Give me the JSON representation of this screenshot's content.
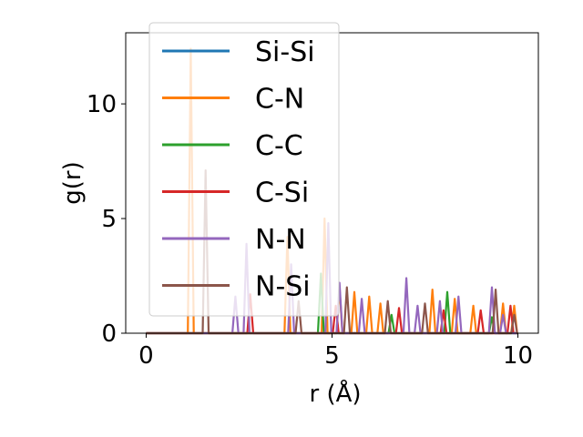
{
  "chart_data": {
    "type": "line",
    "title": "",
    "xlabel": "r (Å)",
    "ylabel": "g(r)",
    "xlim": [
      -0.55,
      10.55
    ],
    "ylim": [
      0,
      13.1
    ],
    "xticks": [
      0,
      5,
      10
    ],
    "yticks": [
      0,
      5,
      10
    ],
    "grid": false,
    "legend_position": "upper-left",
    "series": [
      {
        "name": "Si-Si",
        "color": "#1f77b4",
        "peaks": []
      },
      {
        "name": "C-N",
        "color": "#ff7f0e",
        "peaks": [
          [
            1.2,
            12.4
          ],
          [
            3.8,
            4.2
          ],
          [
            4.8,
            5.0
          ],
          [
            5.2,
            2.0
          ],
          [
            5.6,
            1.8
          ],
          [
            6.0,
            1.6
          ],
          [
            6.3,
            1.3
          ],
          [
            7.7,
            1.9
          ],
          [
            8.3,
            1.5
          ],
          [
            8.8,
            1.2
          ],
          [
            9.6,
            1.3
          ],
          [
            9.9,
            1.2
          ]
        ]
      },
      {
        "name": "C-C",
        "color": "#2ca02c",
        "peaks": [
          [
            4.7,
            2.6
          ],
          [
            6.6,
            0.8
          ],
          [
            8.1,
            1.8
          ],
          [
            9.3,
            0.7
          ]
        ]
      },
      {
        "name": "C-Si",
        "color": "#d62728",
        "peaks": [
          [
            2.8,
            1.7
          ],
          [
            5.1,
            1.2
          ],
          [
            6.8,
            1.1
          ],
          [
            8.0,
            1.0
          ],
          [
            9.0,
            1.0
          ],
          [
            9.8,
            1.2
          ]
        ]
      },
      {
        "name": "N-N",
        "color": "#9467bd",
        "peaks": [
          [
            2.4,
            1.6
          ],
          [
            2.7,
            3.9
          ],
          [
            3.9,
            3.0
          ],
          [
            4.9,
            4.8
          ],
          [
            5.2,
            2.2
          ],
          [
            5.8,
            1.5
          ],
          [
            7.0,
            2.4
          ],
          [
            7.3,
            1.2
          ],
          [
            7.9,
            1.4
          ],
          [
            8.4,
            1.6
          ],
          [
            9.3,
            2.0
          ],
          [
            9.6,
            0.8
          ]
        ]
      },
      {
        "name": "N-Si",
        "color": "#8c564b",
        "peaks": [
          [
            1.6,
            7.1
          ],
          [
            4.1,
            1.4
          ],
          [
            5.4,
            2.0
          ],
          [
            6.5,
            1.4
          ],
          [
            7.5,
            1.3
          ],
          [
            9.4,
            1.9
          ],
          [
            9.9,
            0.8
          ]
        ]
      }
    ]
  }
}
